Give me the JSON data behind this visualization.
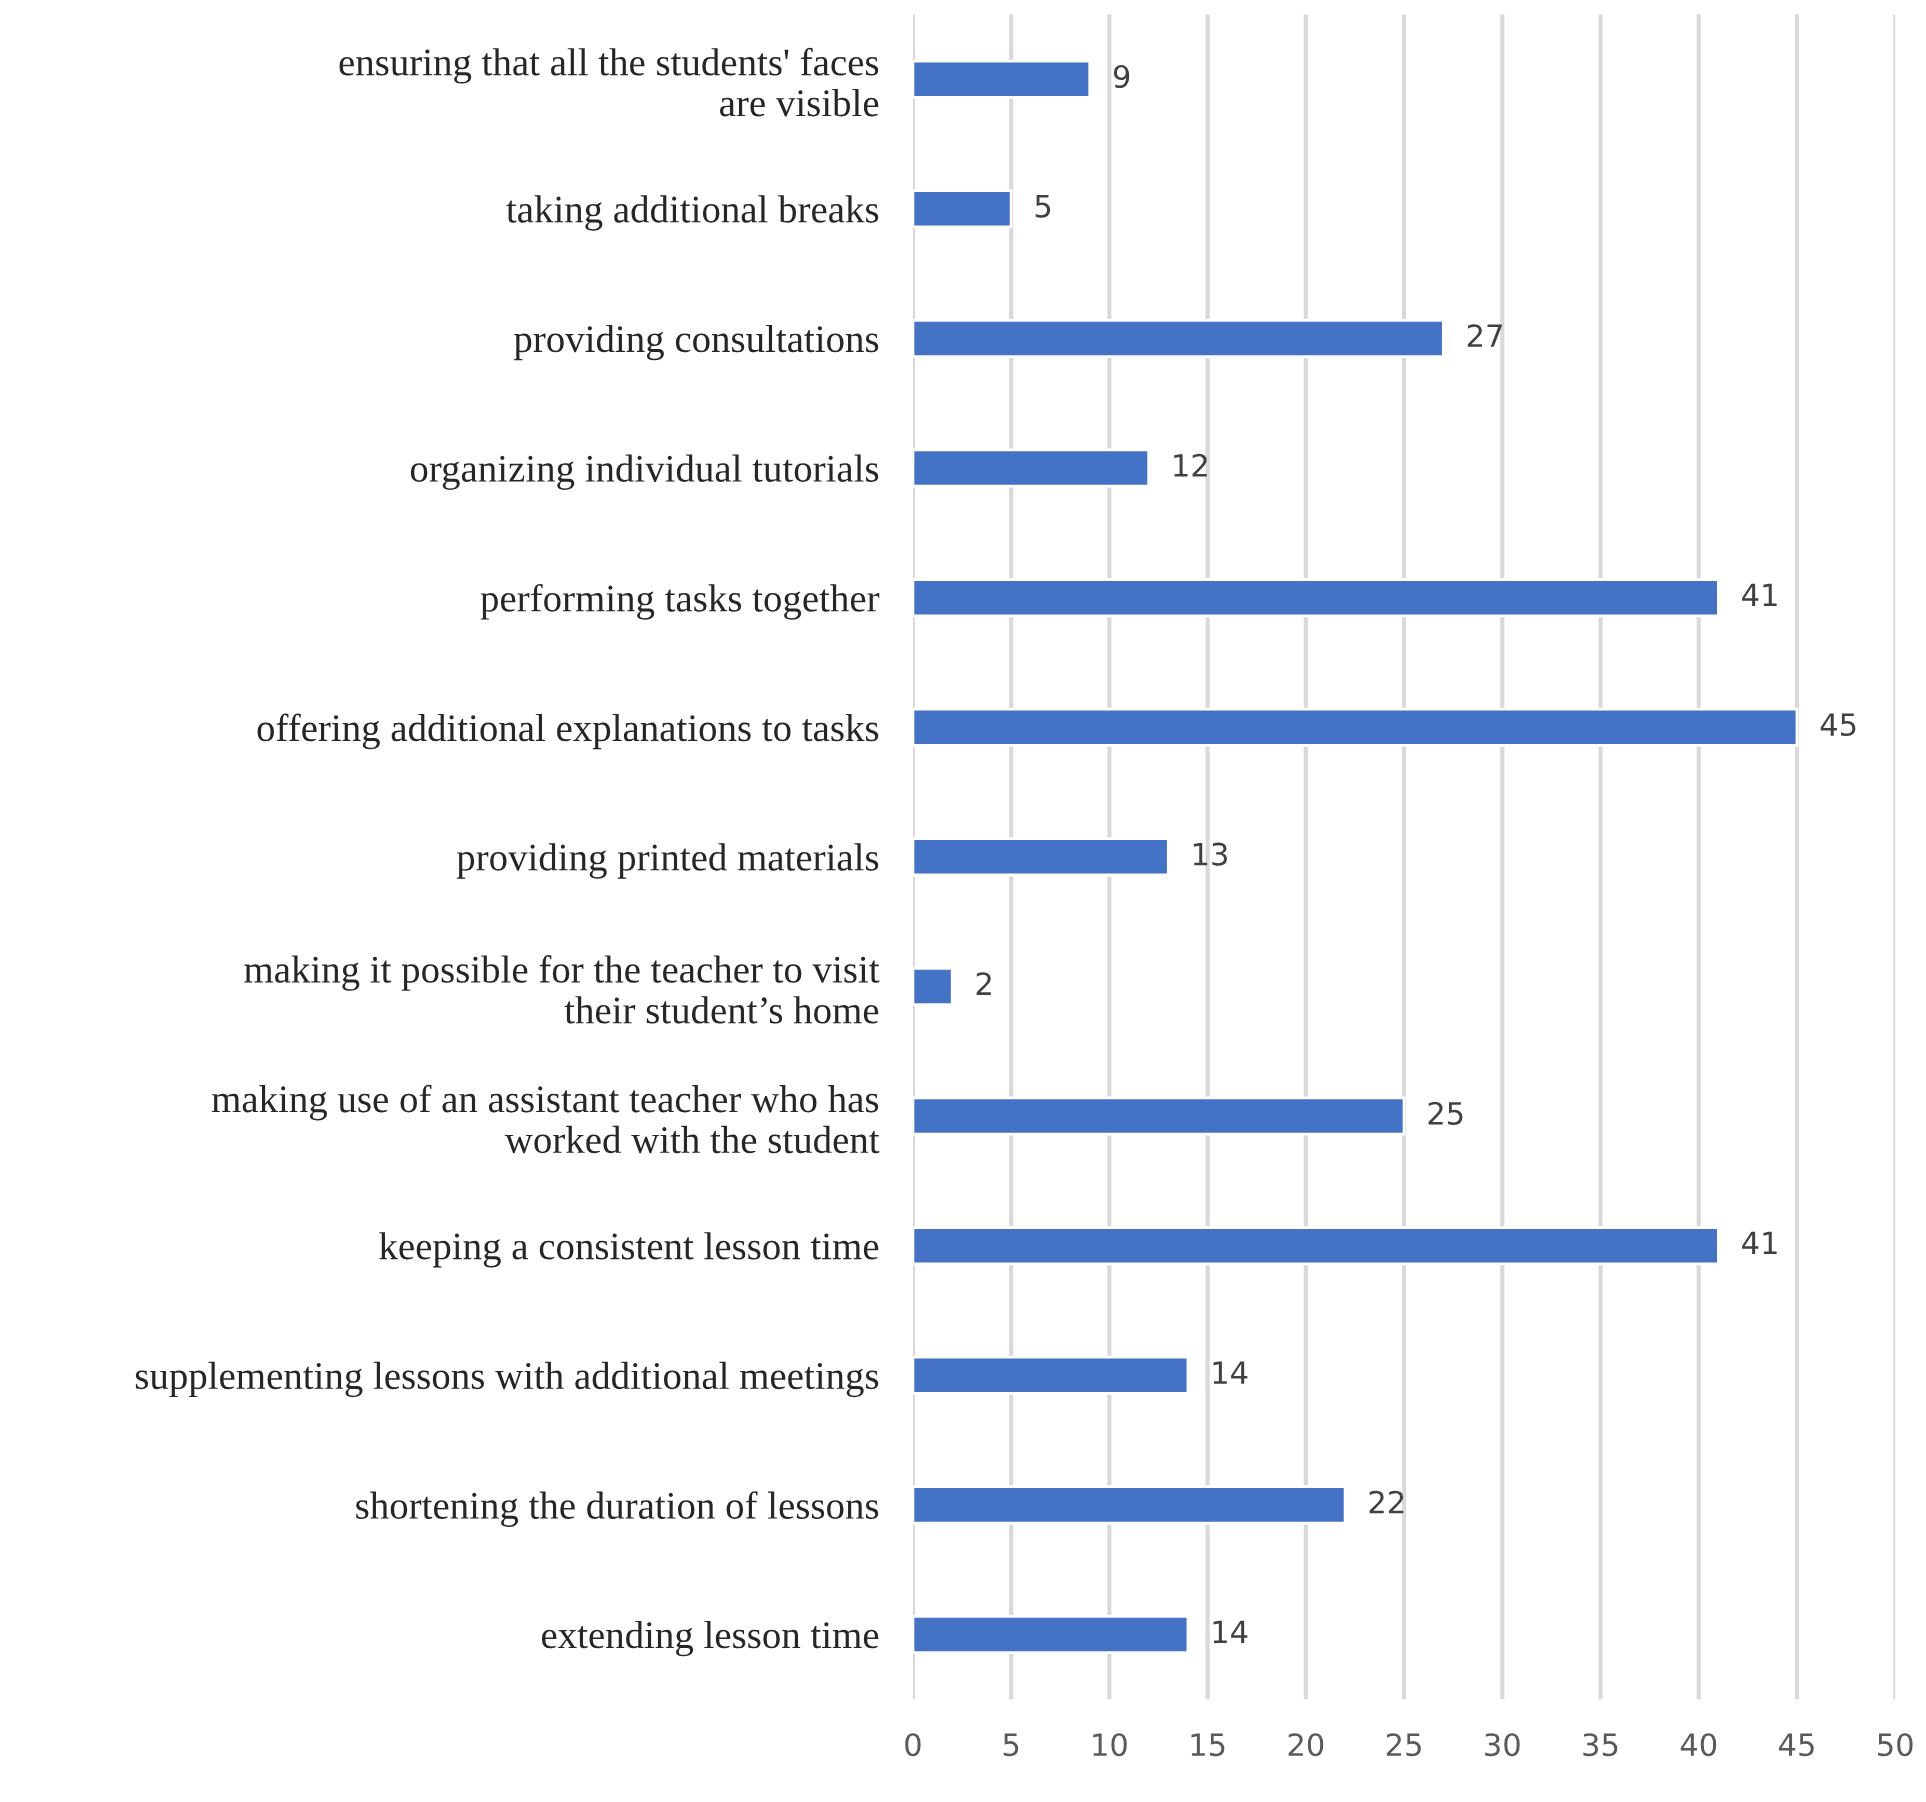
{
  "chart_data": {
    "type": "bar",
    "orientation": "horizontal",
    "categories": [
      "ensuring that all the students' faces\nare visible",
      "taking additional breaks",
      "providing consultations",
      "organizing individual tutorials",
      "performing tasks together",
      "offering additional explanations to tasks",
      "providing printed materials",
      "making it possible for the teacher to visit\ntheir student’s home",
      "making use of an assistant teacher who has\nworked with the student",
      "keeping a consistent lesson time",
      "supplementing lessons with additional meetings",
      "shortening the duration of lessons",
      "extending lesson time"
    ],
    "values": [
      9,
      5,
      27,
      12,
      41,
      45,
      13,
      2,
      25,
      41,
      14,
      22,
      14
    ],
    "color": "#4472c4",
    "data_labels": true,
    "xlim": [
      0,
      50
    ],
    "xticks": [
      0,
      5,
      10,
      15,
      20,
      25,
      30,
      35,
      40,
      45,
      50
    ],
    "grid": "x"
  }
}
